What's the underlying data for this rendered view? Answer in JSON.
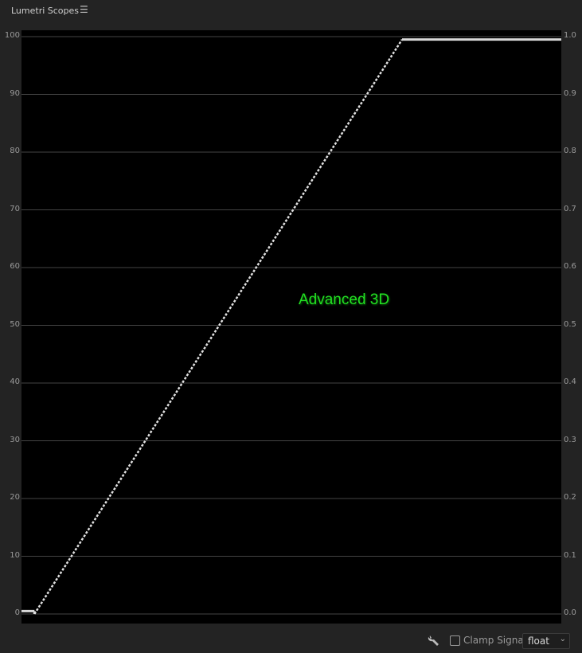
{
  "panel": {
    "title": "Lumetri Scopes",
    "menu_icon": "hamburger-menu-icon"
  },
  "scope": {
    "left_ticks": [
      "0",
      "10",
      "20",
      "30",
      "40",
      "50",
      "60",
      "70",
      "80",
      "90",
      "100"
    ],
    "right_ticks": [
      "0.0",
      "0.1",
      "0.2",
      "0.3",
      "0.4",
      "0.5",
      "0.6",
      "0.7",
      "0.8",
      "0.9",
      "1.0"
    ],
    "overlay_label": "Advanced 3D",
    "overlay_color": "#22e022"
  },
  "chart_data": {
    "type": "line",
    "ylim": [
      0,
      100
    ],
    "grid": true,
    "series": [
      {
        "points": [
          [
            0,
            0.5
          ],
          [
            0.024,
            0.5
          ],
          [
            0.024,
            0
          ],
          [
            0.705,
            99.5
          ],
          [
            1,
            99.5
          ]
        ]
      }
    ]
  },
  "footer": {
    "wrench_icon": "wrench-icon",
    "clamp_label": "Clamp Signal",
    "clamp_checked": false,
    "format_value": "float"
  }
}
